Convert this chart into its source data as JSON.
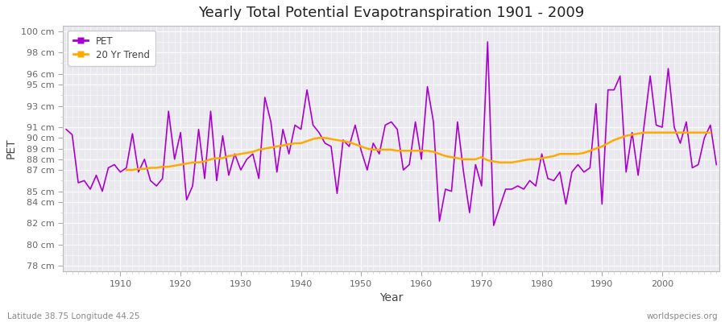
{
  "title": "Yearly Total Potential Evapotranspiration 1901 - 2009",
  "xlabel": "Year",
  "ylabel": "PET",
  "footnote_left": "Latitude 38.75 Longitude 44.25",
  "footnote_right": "worldspecies.org",
  "pet_color": "#aa00cc",
  "trend_color": "#ffaa00",
  "fig_bg_color": "#ffffff",
  "plot_bg_color": "#e8e8ee",
  "grid_color": "#ffffff",
  "years": [
    1901,
    1902,
    1903,
    1904,
    1905,
    1906,
    1907,
    1908,
    1909,
    1910,
    1911,
    1912,
    1913,
    1914,
    1915,
    1916,
    1917,
    1918,
    1919,
    1920,
    1921,
    1922,
    1923,
    1924,
    1925,
    1926,
    1927,
    1928,
    1929,
    1930,
    1931,
    1932,
    1933,
    1934,
    1935,
    1936,
    1937,
    1938,
    1939,
    1940,
    1941,
    1942,
    1943,
    1944,
    1945,
    1946,
    1947,
    1948,
    1949,
    1950,
    1951,
    1952,
    1953,
    1954,
    1955,
    1956,
    1957,
    1958,
    1959,
    1960,
    1961,
    1962,
    1963,
    1964,
    1965,
    1966,
    1967,
    1968,
    1969,
    1970,
    1971,
    1972,
    1973,
    1974,
    1975,
    1976,
    1977,
    1978,
    1979,
    1980,
    1981,
    1982,
    1983,
    1984,
    1985,
    1986,
    1987,
    1988,
    1989,
    1990,
    1991,
    1992,
    1993,
    1994,
    1995,
    1996,
    1997,
    1998,
    1999,
    2000,
    2001,
    2002,
    2003,
    2004,
    2005,
    2006,
    2007,
    2008,
    2009
  ],
  "pet_values": [
    90.8,
    90.3,
    85.8,
    86.0,
    85.2,
    86.5,
    85.0,
    87.2,
    87.5,
    86.8,
    87.2,
    90.4,
    86.8,
    88.0,
    86.0,
    85.5,
    86.2,
    92.5,
    88.0,
    90.5,
    84.2,
    85.5,
    90.8,
    86.2,
    92.5,
    86.0,
    90.2,
    86.5,
    88.5,
    87.0,
    88.0,
    88.5,
    86.2,
    93.8,
    91.5,
    86.8,
    90.8,
    88.5,
    91.2,
    90.8,
    94.5,
    91.2,
    90.5,
    89.5,
    89.2,
    84.8,
    89.8,
    89.2,
    91.2,
    88.8,
    87.0,
    89.5,
    88.5,
    91.2,
    91.5,
    90.8,
    87.0,
    87.5,
    91.5,
    88.0,
    94.8,
    91.5,
    82.2,
    85.2,
    85.0,
    91.5,
    86.8,
    83.0,
    87.5,
    85.5,
    99.0,
    81.8,
    83.5,
    85.2,
    85.2,
    85.5,
    85.2,
    86.0,
    85.5,
    88.5,
    86.2,
    86.0,
    86.8,
    83.8,
    86.8,
    87.5,
    86.8,
    87.2,
    93.2,
    83.8,
    94.5,
    94.5,
    95.8,
    86.8,
    90.5,
    86.5,
    91.2,
    95.8,
    91.2,
    91.0,
    96.5,
    91.0,
    89.5,
    91.5,
    87.2,
    87.5,
    90.0,
    91.2,
    87.5
  ],
  "trend_values": [
    null,
    null,
    null,
    null,
    null,
    null,
    null,
    null,
    null,
    null,
    87.0,
    87.0,
    87.1,
    87.1,
    87.2,
    87.2,
    87.3,
    87.3,
    87.4,
    87.5,
    87.6,
    87.7,
    87.7,
    87.8,
    88.0,
    88.1,
    88.1,
    88.3,
    88.4,
    88.5,
    88.6,
    88.7,
    88.9,
    89.0,
    89.1,
    89.2,
    89.3,
    89.4,
    89.5,
    89.5,
    89.7,
    89.9,
    90.0,
    90.0,
    89.9,
    89.8,
    89.7,
    89.6,
    89.4,
    89.2,
    89.0,
    88.9,
    88.9,
    88.9,
    88.9,
    88.8,
    88.8,
    88.8,
    88.8,
    88.8,
    88.8,
    88.7,
    88.5,
    88.3,
    88.2,
    88.1,
    88.0,
    88.0,
    88.0,
    88.2,
    87.9,
    87.8,
    87.7,
    87.7,
    87.7,
    87.8,
    87.9,
    88.0,
    88.0,
    88.1,
    88.2,
    88.3,
    88.5,
    88.5,
    88.5,
    88.5,
    88.6,
    88.8,
    89.0,
    89.2,
    89.5,
    89.8,
    90.0,
    90.2,
    90.3,
    90.4,
    90.5,
    90.5,
    90.5,
    90.5,
    90.5,
    90.5,
    90.5,
    90.5,
    90.5,
    90.5,
    90.5,
    90.5,
    null
  ],
  "ylim": [
    77.5,
    100.5
  ],
  "ytick_values": [
    78,
    80,
    82,
    84,
    85,
    87,
    88,
    89,
    90,
    91,
    93,
    95,
    96,
    98,
    100
  ],
  "xlim": [
    1900.5,
    2009.5
  ],
  "xticks": [
    1910,
    1920,
    1930,
    1940,
    1950,
    1960,
    1970,
    1980,
    1990,
    2000
  ]
}
